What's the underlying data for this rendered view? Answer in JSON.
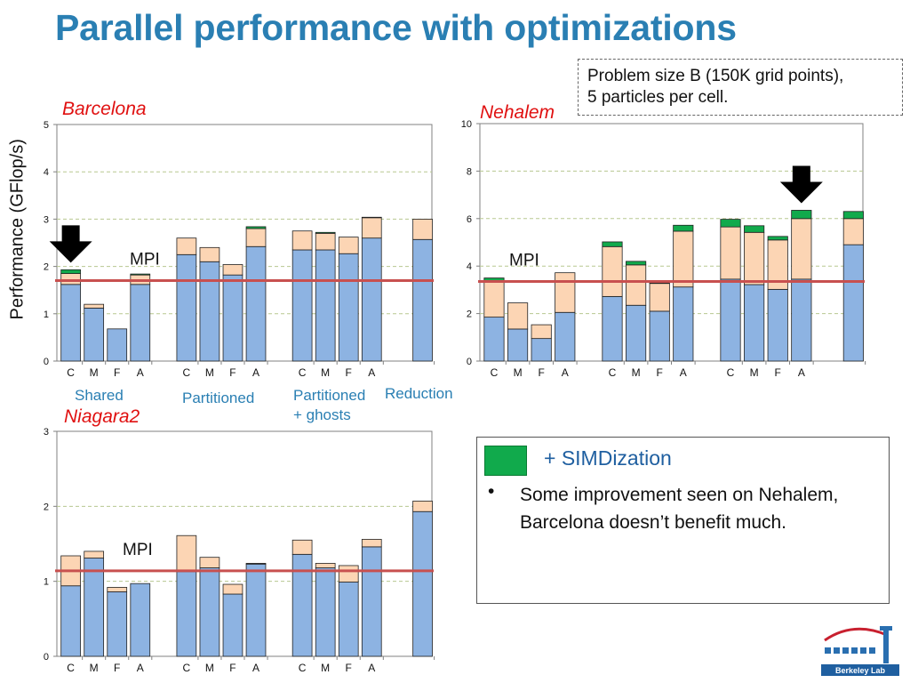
{
  "title": "Parallel performance with optimizations",
  "note": [
    "Problem size B (150K grid points),",
    "5 particles per cell."
  ],
  "y_axis_label": "Performance (GFlop/s)",
  "group_labels": [
    "Shared",
    "Partitioned",
    "Partitioned",
    "+ ghosts",
    "Reduction"
  ],
  "legend": {
    "swatch_color": "#11aa4c",
    "label": "+ SIMDization",
    "bullet": "•",
    "text": "Some improvement seen on Nehalem, Barcelona doesn’t benefit much."
  },
  "logo": {
    "icon": "berkeley-lab-logo",
    "text": "Berkeley Lab"
  },
  "chart_data": [
    {
      "type": "bar",
      "stacked": true,
      "title": "Barcelona",
      "ylim": [
        0,
        5
      ],
      "yticks": [
        "0",
        "1",
        "2",
        "3",
        "4",
        "5"
      ],
      "categories": [
        "C",
        "M",
        "F",
        "A",
        "C",
        "M",
        "F",
        "A",
        "C",
        "M",
        "F",
        "A",
        ""
      ],
      "series": [
        {
          "color": "#8db3e2",
          "values": [
            1.62,
            1.12,
            0.68,
            1.62,
            2.25,
            2.1,
            1.82,
            2.42,
            2.35,
            2.35,
            2.27,
            2.6,
            2.57
          ]
        },
        {
          "color": "#fcd5b4",
          "values": [
            0.23,
            0.08,
            0,
            0.2,
            0.35,
            0.3,
            0.22,
            0.38,
            0.4,
            0.35,
            0.35,
            0.43,
            0.43
          ]
        },
        {
          "color": "#11aa4c",
          "values": [
            0.08,
            0,
            0,
            0.02,
            0,
            0,
            0,
            0.04,
            0,
            0.02,
            0,
            0.01,
            0
          ]
        }
      ],
      "gridlines": true,
      "mpi_line": 1.7,
      "mpi_label": "MPI",
      "highlight_index": 0,
      "highlight_icon": "down-arrow-icon"
    },
    {
      "type": "bar",
      "stacked": true,
      "title": "Nehalem",
      "ylim": [
        0,
        10
      ],
      "yticks": [
        "0",
        "2",
        "4",
        "6",
        "8",
        "10"
      ],
      "categories": [
        "C",
        "M",
        "F",
        "A",
        "C",
        "M",
        "F",
        "A",
        "C",
        "M",
        "F",
        "A",
        ""
      ],
      "series": [
        {
          "color": "#8db3e2",
          "values": [
            1.85,
            1.35,
            0.95,
            2.05,
            2.72,
            2.35,
            2.1,
            3.12,
            3.45,
            3.22,
            3.02,
            3.45,
            4.9
          ]
        },
        {
          "color": "#fcd5b4",
          "values": [
            1.5,
            1.1,
            0.58,
            1.67,
            2.1,
            1.7,
            1.17,
            2.35,
            2.2,
            2.2,
            2.08,
            2.55,
            1.1
          ]
        },
        {
          "color": "#11aa4c",
          "values": [
            0.15,
            0,
            0,
            0,
            0.2,
            0.15,
            0.03,
            0.25,
            0.32,
            0.28,
            0.15,
            0.35,
            0.3
          ]
        }
      ],
      "gridlines": true,
      "mpi_line": 3.35,
      "mpi_label": "MPI",
      "highlight_index": 11,
      "highlight_icon": "down-arrow-icon"
    },
    {
      "type": "bar",
      "stacked": true,
      "title": "Niagara2",
      "ylim": [
        0,
        3
      ],
      "yticks": [
        "0",
        "1",
        "2",
        "3"
      ],
      "categories": [
        "C",
        "M",
        "F",
        "A",
        "C",
        "M",
        "F",
        "A",
        "C",
        "M",
        "F",
        "A",
        ""
      ],
      "series": [
        {
          "color": "#8db3e2",
          "values": [
            0.94,
            1.31,
            0.86,
            0.97,
            1.13,
            1.18,
            0.83,
            1.23,
            1.36,
            1.18,
            0.99,
            1.46,
            1.93
          ]
        },
        {
          "color": "#fcd5b4",
          "values": [
            0.4,
            0.09,
            0.06,
            0,
            0.48,
            0.14,
            0.13,
            0.01,
            0.19,
            0.06,
            0.22,
            0.1,
            0.14
          ]
        },
        {
          "color": "#11aa4c",
          "values": [
            0,
            0,
            0,
            0,
            0,
            0,
            0,
            0,
            0,
            0,
            0,
            0,
            0
          ]
        }
      ],
      "gridlines": true,
      "mpi_line": 1.14,
      "mpi_label": "MPI",
      "highlight_index": null,
      "highlight_icon": ""
    }
  ]
}
